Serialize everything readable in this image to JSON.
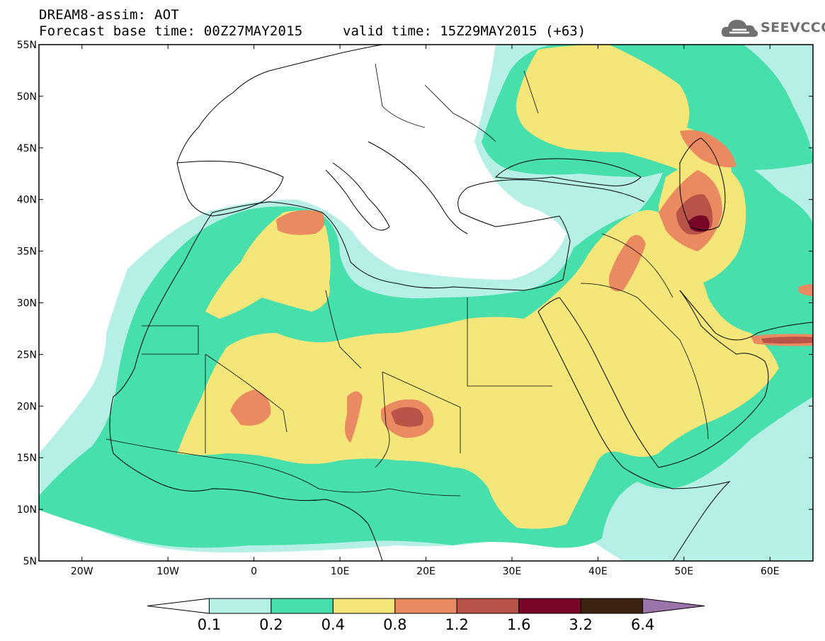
{
  "header": {
    "title": "DREAM8-assim: AOT",
    "base_time": "Forecast base time: 00Z27MAY2015",
    "valid_time": "valid time: 15Z29MAY2015 (+63)"
  },
  "logo": {
    "text": "SEEVCCC",
    "icon": "cloud-icon"
  },
  "map": {
    "lon_range": [
      -25,
      65
    ],
    "lat_range": [
      5,
      55
    ],
    "lat_ticks": [
      "55N",
      "50N",
      "45N",
      "40N",
      "35N",
      "30N",
      "25N",
      "20N",
      "15N",
      "10N",
      "5N"
    ],
    "lon_ticks": [
      "20W",
      "10W",
      "0",
      "10E",
      "20E",
      "30E",
      "40E",
      "50E",
      "60E"
    ]
  },
  "legend": {
    "labels": [
      "0.1",
      "0.2",
      "0.4",
      "0.8",
      "1.2",
      "1.6",
      "3.2",
      "6.4"
    ],
    "colors": [
      "#ffffff",
      "#b6efe6",
      "#47dfab",
      "#f5e67a",
      "#e98a60",
      "#b95247",
      "#7a0628",
      "#3b2412",
      "#9a74ab"
    ]
  }
}
